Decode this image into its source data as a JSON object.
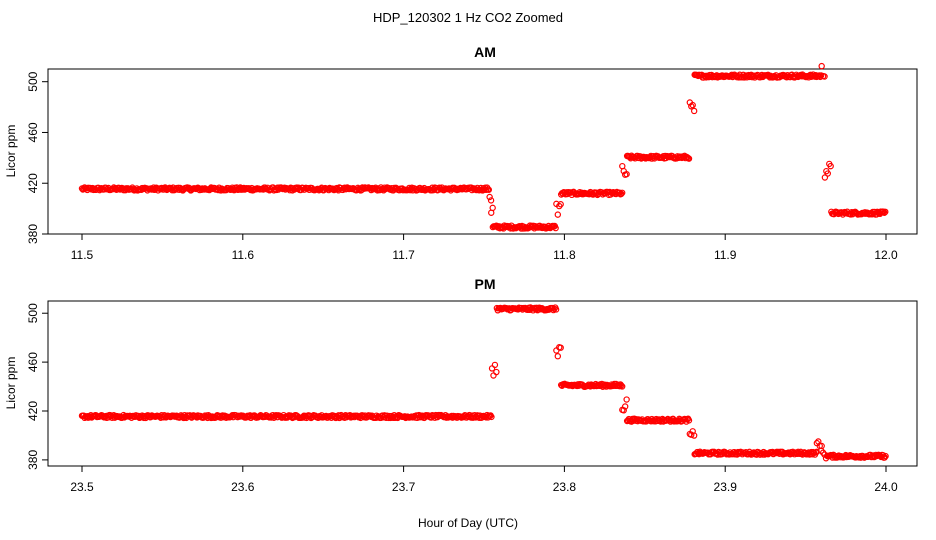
{
  "title": "HDP_120302  1 Hz CO2 Zoomed",
  "xlabel": "Hour of Day (UTC)",
  "chart_data": [
    {
      "type": "scatter",
      "title": "AM",
      "ylabel": "Licor ppm",
      "xlim": [
        11.5,
        12.0
      ],
      "ylim": [
        380,
        510
      ],
      "xticks": [
        11.5,
        11.6,
        11.7,
        11.8,
        11.9,
        12.0
      ],
      "xtick_labels": [
        "11.5",
        "11.6",
        "11.7",
        "11.8",
        "11.9",
        "12.0"
      ],
      "yticks": [
        380,
        420,
        460,
        500
      ],
      "ytick_labels": [
        "380",
        "420",
        "460",
        "500"
      ],
      "color": "#ff0000",
      "marker": "open-circle",
      "grid": false,
      "segments": [
        {
          "x_start": 11.5,
          "x_end": 11.7535,
          "y": 415.5
        },
        {
          "x_start": 11.7535,
          "x_end": 11.7545,
          "y": 410
        },
        {
          "x_start": 11.7545,
          "x_end": 11.7555,
          "y": 398
        },
        {
          "x_start": 11.7555,
          "x_end": 11.795,
          "y": 385.5
        },
        {
          "x_start": 11.795,
          "x_end": 11.798,
          "y": 400
        },
        {
          "x_start": 11.798,
          "x_end": 11.836,
          "y": 412
        },
        {
          "x_start": 11.836,
          "x_end": 11.839,
          "y": 428
        },
        {
          "x_start": 11.839,
          "x_end": 11.878,
          "y": 440.5
        },
        {
          "x_start": 11.878,
          "x_end": 11.881,
          "y": 478
        },
        {
          "x_start": 11.881,
          "x_end": 11.96,
          "y": 504.5
        },
        {
          "x_start": 11.96,
          "x_end": 11.962,
          "y": 508
        },
        {
          "x_start": 11.962,
          "x_end": 11.966,
          "y": 430
        },
        {
          "x_start": 11.966,
          "x_end": 12.0,
          "y": 396.5
        }
      ]
    },
    {
      "type": "scatter",
      "title": "PM",
      "ylabel": "Licor ppm",
      "xlim": [
        23.5,
        24.0
      ],
      "ylim": [
        375,
        510
      ],
      "xticks": [
        23.5,
        23.6,
        23.7,
        23.8,
        23.9,
        24.0
      ],
      "xtick_labels": [
        "23.5",
        "23.6",
        "23.7",
        "23.8",
        "23.9",
        "24.0"
      ],
      "yticks": [
        380,
        420,
        460,
        500
      ],
      "ytick_labels": [
        "380",
        "420",
        "460",
        "500"
      ],
      "color": "#ff0000",
      "marker": "open-circle",
      "grid": false,
      "segments": [
        {
          "x_start": 23.5,
          "x_end": 23.755,
          "y": 415.5
        },
        {
          "x_start": 23.755,
          "x_end": 23.758,
          "y": 455
        },
        {
          "x_start": 23.758,
          "x_end": 23.795,
          "y": 503.5
        },
        {
          "x_start": 23.795,
          "x_end": 23.798,
          "y": 470
        },
        {
          "x_start": 23.798,
          "x_end": 23.836,
          "y": 441
        },
        {
          "x_start": 23.836,
          "x_end": 23.839,
          "y": 425
        },
        {
          "x_start": 23.839,
          "x_end": 23.878,
          "y": 412.5
        },
        {
          "x_start": 23.878,
          "x_end": 23.881,
          "y": 398
        },
        {
          "x_start": 23.881,
          "x_end": 23.957,
          "y": 385.5
        },
        {
          "x_start": 23.957,
          "x_end": 23.96,
          "y": 393
        },
        {
          "x_start": 23.96,
          "x_end": 23.964,
          "y": 386
        },
        {
          "x_start": 23.964,
          "x_end": 24.0,
          "y": 383
        }
      ]
    }
  ]
}
